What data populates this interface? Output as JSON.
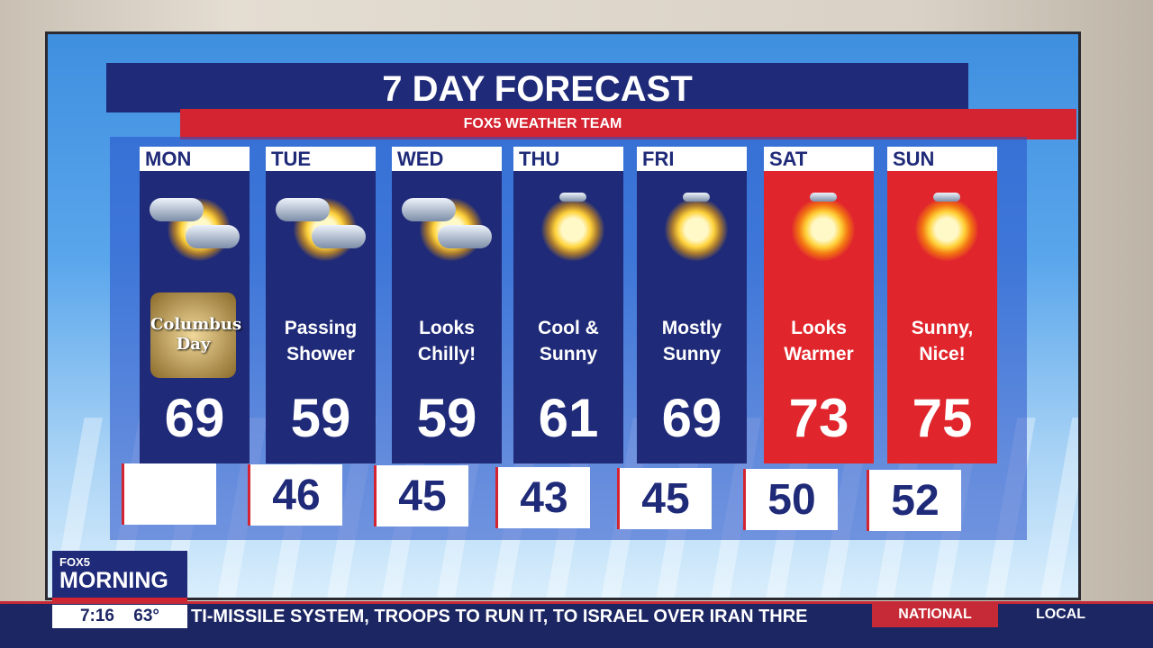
{
  "title": "7 DAY FORECAST",
  "subtitle": "FOX5 WEATHER TEAM",
  "colors": {
    "navy": "#1f2a78",
    "red": "#e0262c",
    "accent_red": "#d42431"
  },
  "days": [
    {
      "day": "MON",
      "icon": "partly-cloudy-icon",
      "desc": "",
      "badge": "Columbus Day",
      "high": "69",
      "low": ""
    },
    {
      "day": "TUE",
      "icon": "cloudy-sun-icon",
      "desc": "Passing Shower",
      "high": "59",
      "low": "46"
    },
    {
      "day": "WED",
      "icon": "partly-cloudy-icon",
      "desc": "Looks Chilly!",
      "high": "59",
      "low": "45"
    },
    {
      "day": "THU",
      "icon": "sun-icon",
      "desc": "Cool & Sunny",
      "high": "61",
      "low": "43"
    },
    {
      "day": "FRI",
      "icon": "sun-icon",
      "desc": "Mostly Sunny",
      "high": "69",
      "low": "45"
    },
    {
      "day": "SAT",
      "icon": "sun-icon",
      "desc": "Looks Warmer",
      "high": "73",
      "low": "50"
    },
    {
      "day": "SUN",
      "icon": "sun-icon",
      "desc": "Sunny, Nice!",
      "high": "75",
      "low": "52"
    }
  ],
  "show": {
    "network": "FOX5",
    "name": "MORNING",
    "time": "7:16",
    "temp": "63°"
  },
  "ticker": {
    "text": "TI-MISSILE SYSTEM, TROOPS TO RUN IT, TO ISRAEL OVER IRAN THRE",
    "tabs": [
      "NATIONAL",
      "LOCAL"
    ]
  }
}
